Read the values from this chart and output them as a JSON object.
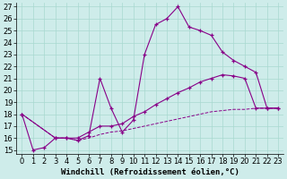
{
  "xlabel": "Windchill (Refroidissement éolien,°C)",
  "bg_color": "#ceecea",
  "line_color": "#880088",
  "xlim": [
    -0.5,
    23.5
  ],
  "ylim": [
    14.7,
    27.3
  ],
  "yticks": [
    15,
    16,
    17,
    18,
    19,
    20,
    21,
    22,
    23,
    24,
    25,
    26,
    27
  ],
  "xticks": [
    0,
    1,
    2,
    3,
    4,
    5,
    6,
    7,
    8,
    9,
    10,
    11,
    12,
    13,
    14,
    15,
    16,
    17,
    18,
    19,
    20,
    21,
    22,
    23
  ],
  "line1_x": [
    0,
    1,
    2,
    3,
    4,
    5,
    6,
    7,
    8,
    9,
    10,
    11,
    12,
    13,
    14,
    15,
    16,
    17,
    18,
    19,
    20,
    21,
    22,
    23
  ],
  "line1_y": [
    18.0,
    15.0,
    15.2,
    16.0,
    16.0,
    15.8,
    16.2,
    21.0,
    18.5,
    16.5,
    17.5,
    23.0,
    25.5,
    26.0,
    27.0,
    25.3,
    25.0,
    24.6,
    23.2,
    22.5,
    22.0,
    21.5,
    18.5,
    18.5
  ],
  "line2_x": [
    0,
    3,
    4,
    5,
    6,
    7,
    8,
    9,
    10,
    11,
    12,
    13,
    14,
    15,
    16,
    17,
    18,
    19,
    20,
    21,
    22,
    23
  ],
  "line2_y": [
    18.0,
    16.0,
    16.0,
    16.0,
    16.5,
    17.0,
    17.0,
    17.2,
    17.8,
    18.2,
    18.8,
    19.3,
    19.8,
    20.2,
    20.7,
    21.0,
    21.3,
    21.2,
    21.0,
    18.5,
    18.5,
    18.5
  ],
  "line3_x": [
    0,
    3,
    4,
    5,
    6,
    7,
    8,
    9,
    10,
    11,
    12,
    13,
    14,
    15,
    16,
    17,
    18,
    19,
    20,
    21,
    22,
    23
  ],
  "line3_y": [
    18.0,
    16.0,
    16.0,
    15.8,
    16.0,
    16.3,
    16.5,
    16.6,
    16.8,
    17.0,
    17.2,
    17.4,
    17.6,
    17.8,
    18.0,
    18.2,
    18.3,
    18.4,
    18.4,
    18.5,
    18.5,
    18.5
  ],
  "grid_color": "#a8d8d0",
  "xlabel_fontsize": 6.5,
  "tick_fontsize": 6
}
